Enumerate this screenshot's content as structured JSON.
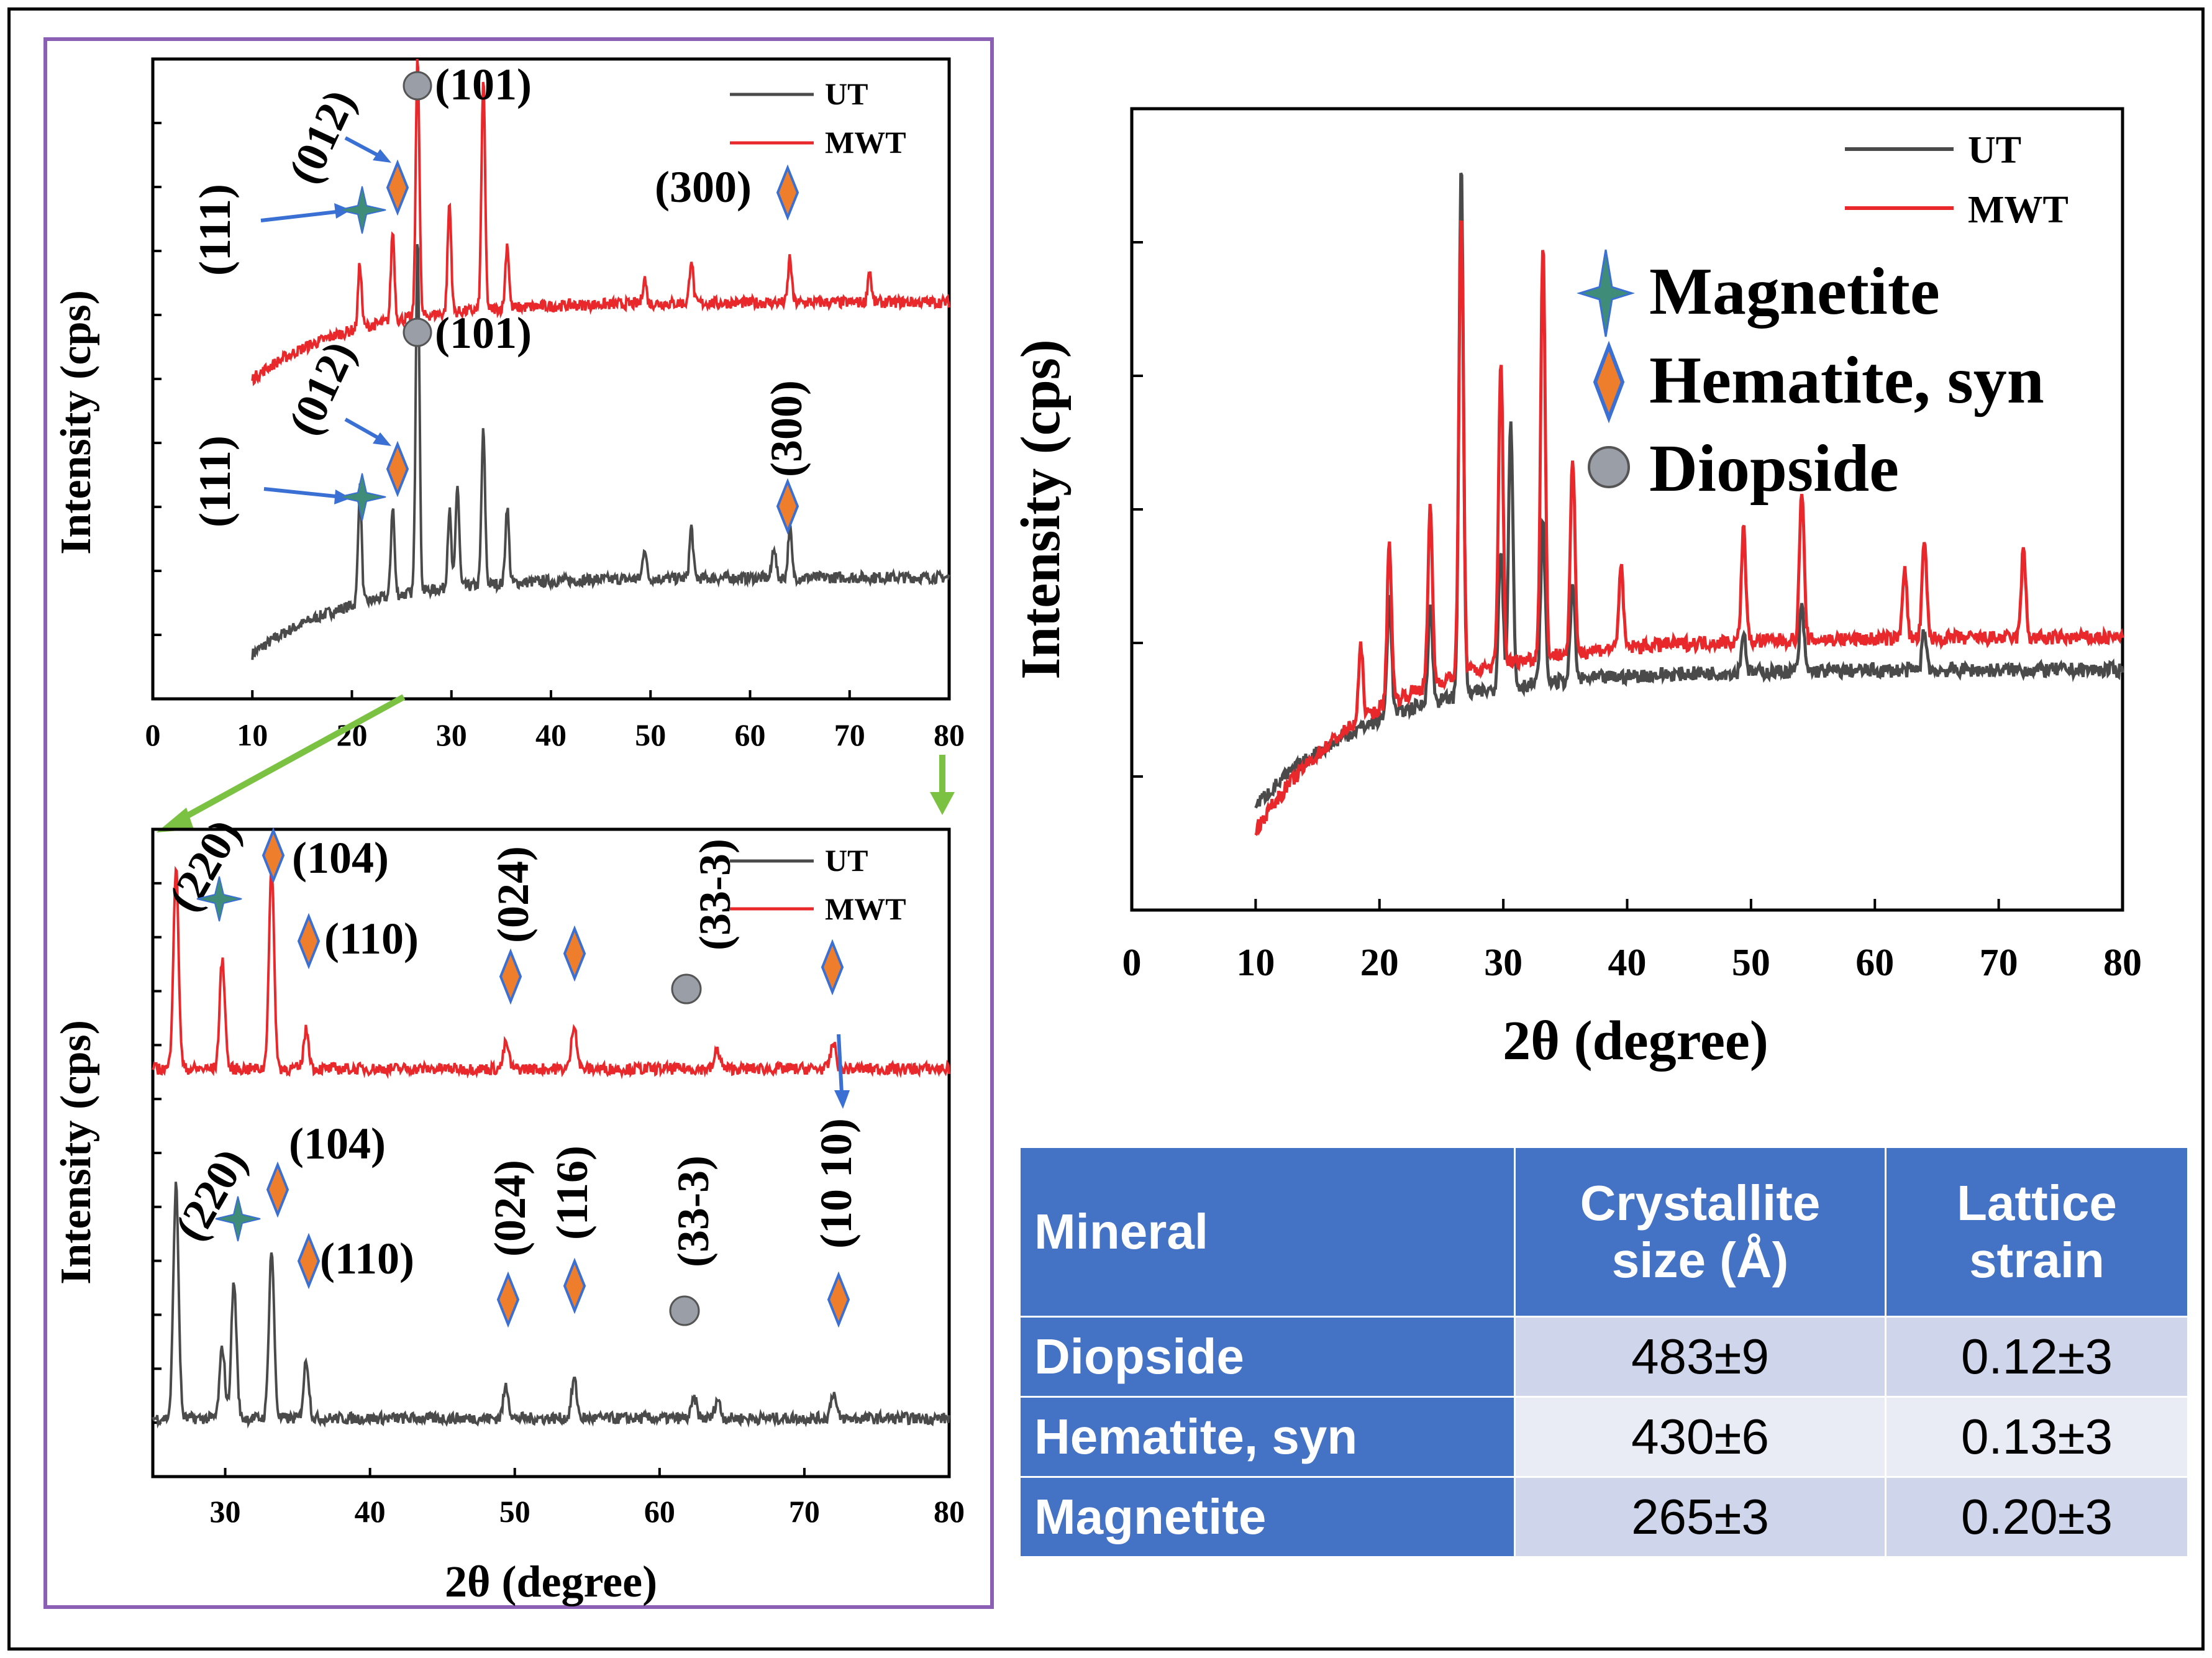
{
  "colors": {
    "ut": "#4a4a4a",
    "mwt": "#e8282b",
    "magnetite": "#3f8c78",
    "hematite": "#ee7d2c",
    "diopside": "#9a9ea6",
    "arrow_blue": "#3a6fd4",
    "arrow_green": "#7cc242",
    "frame_purple": "#8a5fb4",
    "table_header": "#4472c4"
  },
  "chart_data": [
    {
      "id": "top-left",
      "type": "line",
      "xlabel": "",
      "ylabel": "Intensity (cps)",
      "xlim": [
        0,
        80
      ],
      "x_ticks": [
        "0",
        "10",
        "20",
        "30",
        "40",
        "50",
        "60",
        "70",
        "80"
      ],
      "legend": {
        "position": "top-right",
        "entries": [
          "UT",
          "MWT"
        ]
      },
      "series": [
        {
          "name": "UT",
          "start_x": 10,
          "baseline_end": 0.19,
          "baseline_start": 0.07,
          "peaks": [
            [
              20.8,
              0.18
            ],
            [
              24.1,
              0.14
            ],
            [
              26.6,
              0.56
            ],
            [
              29.8,
              0.12
            ],
            [
              30.6,
              0.16
            ],
            [
              33.2,
              0.24
            ],
            [
              35.6,
              0.12
            ],
            [
              49.4,
              0.05
            ],
            [
              54.1,
              0.08
            ],
            [
              62.4,
              0.05
            ],
            [
              64.0,
              0.08
            ]
          ]
        },
        {
          "name": "MWT",
          "start_x": 10,
          "baseline_end": 0.62,
          "baseline_start": 0.5,
          "peaks": [
            [
              20.8,
              0.1
            ],
            [
              24.1,
              0.14
            ],
            [
              26.6,
              0.41
            ],
            [
              29.8,
              0.17
            ],
            [
              33.2,
              0.36
            ],
            [
              35.6,
              0.1
            ],
            [
              49.4,
              0.04
            ],
            [
              54.1,
              0.07
            ],
            [
              64.0,
              0.07
            ],
            [
              72.0,
              0.05
            ]
          ]
        }
      ],
      "annotations": {
        "mwt": [
          "(101)",
          "(012)",
          "(111)",
          "(300)"
        ],
        "ut": [
          "(101)",
          "(012)",
          "(111)",
          "(300)"
        ]
      }
    },
    {
      "id": "bottom-left",
      "type": "line",
      "xlabel": "2θ (degree)",
      "ylabel": "Intensity (cps)",
      "xlim": [
        25,
        80
      ],
      "x_ticks": [
        "30",
        "40",
        "50",
        "60",
        "70",
        "80"
      ],
      "legend": {
        "position": "top-right",
        "entries": [
          "UT",
          "MWT"
        ]
      },
      "series": [
        {
          "name": "UT",
          "baseline": 0.09,
          "peaks": [
            [
              26.6,
              0.36
            ],
            [
              29.8,
              0.11
            ],
            [
              30.6,
              0.21
            ],
            [
              33.2,
              0.26
            ],
            [
              35.6,
              0.09
            ],
            [
              49.4,
              0.05
            ],
            [
              54.1,
              0.06
            ],
            [
              62.4,
              0.03
            ],
            [
              64.0,
              0.03
            ],
            [
              72.0,
              0.04
            ]
          ]
        },
        {
          "name": "MWT",
          "baseline": 0.63,
          "peaks": [
            [
              26.6,
              0.31
            ],
            [
              29.8,
              0.17
            ],
            [
              33.2,
              0.31
            ],
            [
              35.6,
              0.06
            ],
            [
              49.4,
              0.04
            ],
            [
              54.1,
              0.07
            ],
            [
              64.0,
              0.03
            ],
            [
              72.0,
              0.04
            ]
          ]
        }
      ],
      "annotations": {
        "mwt": [
          "(220)",
          "(104)",
          "(110)",
          "(024)",
          "(33-3)"
        ],
        "ut": [
          "(220)",
          "(104)",
          "(110)",
          "(024)",
          "(116)",
          "(33-3)",
          "(10 10)"
        ]
      }
    },
    {
      "id": "right",
      "type": "line",
      "xlabel": "2θ (degree)",
      "ylabel": "Intensity (cps)",
      "xlim": [
        0,
        80
      ],
      "x_ticks": [
        "0",
        "10",
        "20",
        "30",
        "40",
        "50",
        "60",
        "70",
        "80"
      ],
      "legend": {
        "position": "top-right",
        "entries": [
          "UT",
          "MWT"
        ]
      },
      "series": [
        {
          "name": "UT",
          "start_x": 10,
          "baseline_end": 0.3,
          "baseline_start": 0.13,
          "peaks": [
            [
              20.8,
              0.15
            ],
            [
              24.1,
              0.12
            ],
            [
              26.6,
              0.66
            ],
            [
              29.8,
              0.18
            ],
            [
              30.6,
              0.33
            ],
            [
              33.2,
              0.2
            ],
            [
              35.6,
              0.12
            ],
            [
              49.4,
              0.05
            ],
            [
              54.1,
              0.08
            ],
            [
              64.0,
              0.05
            ]
          ]
        },
        {
          "name": "MWT",
          "start_x": 10,
          "baseline_end": 0.34,
          "baseline_start": 0.1,
          "peaks": [
            [
              18.5,
              0.09
            ],
            [
              20.8,
              0.2
            ],
            [
              24.1,
              0.22
            ],
            [
              26.6,
              0.58
            ],
            [
              29.8,
              0.38
            ],
            [
              33.2,
              0.52
            ],
            [
              35.6,
              0.24
            ],
            [
              39.5,
              0.1
            ],
            [
              49.4,
              0.14
            ],
            [
              54.1,
              0.19
            ],
            [
              62.4,
              0.09
            ],
            [
              64.0,
              0.12
            ],
            [
              72.0,
              0.11
            ]
          ]
        }
      ]
    }
  ],
  "top_left": {
    "legend_ut": "UT",
    "legend_mwt": "MWT",
    "ylabel": "Intensity (cps)",
    "mwt_101": "(101)",
    "mwt_012": "(012)",
    "mwt_111": "(111)",
    "mwt_300": "(300)",
    "ut_101": "(101)",
    "ut_012": "(012)",
    "ut_111": "(111)",
    "ut_300": "(300)"
  },
  "bottom_left": {
    "legend_ut": "UT",
    "legend_mwt": "MWT",
    "ylabel": "Intensity (cps)",
    "xlabel": "2θ (degree)",
    "mwt_220": "(220)",
    "mwt_104": "(104)",
    "mwt_110": "(110)",
    "mwt_024": "(024)",
    "mwt_333": "(33-3)",
    "ut_220": "(220)",
    "ut_104": "(104)",
    "ut_110": "(110)",
    "ut_024": "(024)",
    "ut_116": "(116)",
    "ut_333": "(33-3)",
    "ut_1010": "(10 10)"
  },
  "right": {
    "legend_ut": "UT",
    "legend_mwt": "MWT",
    "ylabel": "Intensity (cps)",
    "xlabel": "2θ (degree)",
    "mag": "Magnetite",
    "hem": "Hematite, syn",
    "dio": "Diopside"
  },
  "table": {
    "headers": [
      "Mineral",
      "Crystallite size (Å)",
      "Lattice strain"
    ],
    "rows": [
      {
        "mineral": "Diopside",
        "size": "483±9",
        "strain": "0.12±3"
      },
      {
        "mineral": "Hematite, syn",
        "size": "430±6",
        "strain": "0.13±3"
      },
      {
        "mineral": "Magnetite",
        "size": "265±3",
        "strain": "0.20±3"
      }
    ]
  }
}
